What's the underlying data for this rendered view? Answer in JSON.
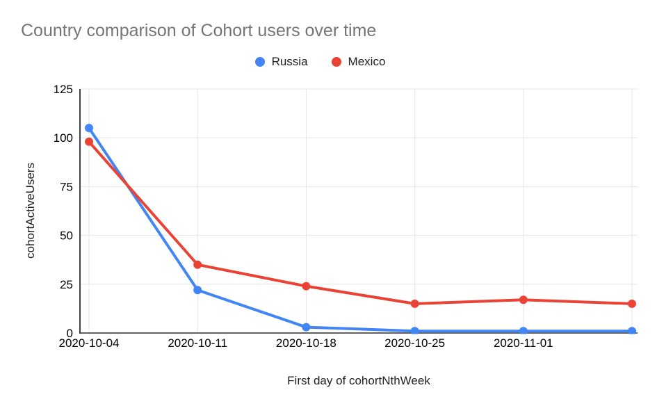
{
  "chart_data": {
    "type": "line",
    "title": "Country comparison of Cohort users over time",
    "xlabel": "First day of cohortNthWeek",
    "ylabel": "cohortActiveUsers",
    "categories": [
      "2020-10-04",
      "2020-10-11",
      "2020-10-18",
      "2020-10-25",
      "2020-11-01",
      ""
    ],
    "series": [
      {
        "name": "Russia",
        "color": "#4285F4",
        "values": [
          105,
          22,
          3,
          1,
          1,
          1
        ]
      },
      {
        "name": "Mexico",
        "color": "#EA4335",
        "values": [
          98,
          35,
          24,
          15,
          17,
          15
        ]
      }
    ],
    "ylim": [
      0,
      125
    ],
    "y_ticks": [
      0,
      25,
      50,
      75,
      100,
      125
    ],
    "grid": true,
    "legend_position": "top",
    "marker": "circle"
  },
  "colors": {
    "background": "#ffffff",
    "title_text": "#757575",
    "axis_text": "#000000",
    "axis_title_text": "#202124",
    "legend_text": "#212121",
    "gridline": "#e6e6e6",
    "axis_line": "#424242",
    "baseline": "#616161"
  }
}
